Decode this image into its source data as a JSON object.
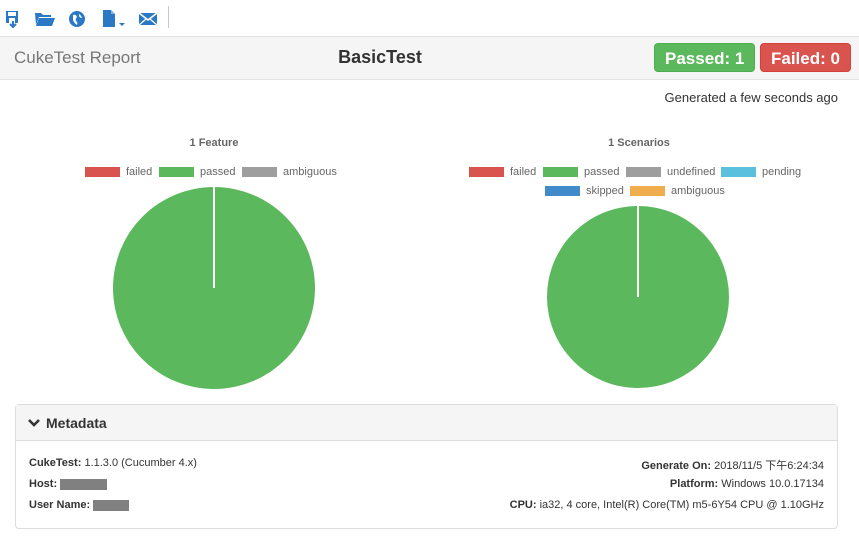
{
  "toolbar": {
    "items": [
      {
        "name": "save-icon"
      },
      {
        "name": "open-folder-icon"
      },
      {
        "name": "globe-icon"
      },
      {
        "name": "export-file-icon"
      },
      {
        "name": "email-icon"
      }
    ]
  },
  "header": {
    "brand": "CukeTest Report",
    "title": "BasicTest",
    "passed_badge": "Passed: 1",
    "failed_badge": "Failed: 0"
  },
  "generated": "Generated a few seconds ago",
  "colors": {
    "failed": "#d9534f",
    "passed": "#5cb85c",
    "ambiguous_gray": "#9e9e9e",
    "undefined": "#9e9e9e",
    "pending": "#5bc0de",
    "skipped": "#428bca",
    "ambiguous_orange": "#f0ad4e"
  },
  "chart_data": [
    {
      "type": "pie",
      "title": "1 Feature",
      "categories": [
        "failed",
        "passed",
        "ambiguous"
      ],
      "values": [
        0,
        1,
        0
      ]
    },
    {
      "type": "pie",
      "title": "1 Scenarios",
      "categories": [
        "failed",
        "passed",
        "undefined",
        "pending",
        "skipped",
        "ambiguous"
      ],
      "values": [
        0,
        1,
        0,
        0,
        0,
        0
      ]
    }
  ],
  "metadata": {
    "heading": "Metadata",
    "cuketest_label": "CukeTest:",
    "cuketest_value": "1.1.3.0 (Cucumber 4.x)",
    "host_label": "Host:",
    "username_label": "User Name:",
    "generate_label": "Generate On:",
    "generate_value": "2018/11/5 下午6:24:34",
    "platform_label": "Platform:",
    "platform_value": "Windows 10.0.17134",
    "cpu_label": "CPU:",
    "cpu_value": "ia32, 4 core, Intel(R) Core(TM) m5-6Y54 CPU @ 1.10GHz"
  }
}
